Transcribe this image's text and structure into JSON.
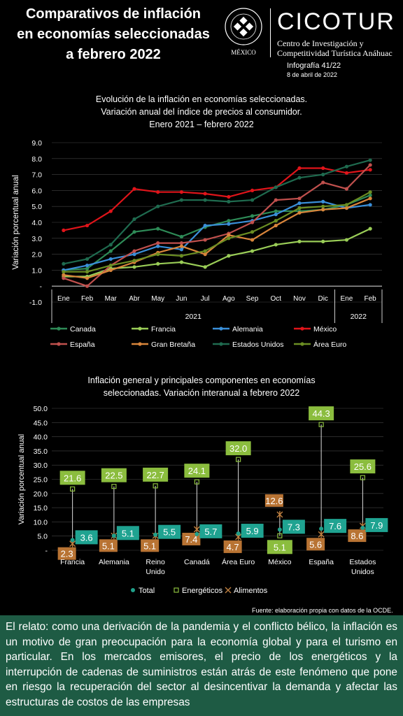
{
  "header": {
    "title_lines": [
      "Comparativos de inflación",
      "en economías seleccionadas",
      "a febrero 2022"
    ],
    "university_seal_text": "UNIVERSIDAD ANÁHUAC · VINCE IN BONO MALUM",
    "university_location": "MÉXICO",
    "brand": "CICOTUR",
    "tagline_lines": [
      "Centro de Investigación y",
      "Competitividad Turística Anáhuac"
    ],
    "infografia": "Infografía 41/22",
    "date": "8 de abril de 2022"
  },
  "chart_data": [
    {
      "type": "line",
      "title_lines": [
        "Evolución de la inflación en economías seleccionadas.",
        "Variación anual del índice de precios al consumidor.",
        "Enero 2021 – febrero 2022"
      ],
      "ylabel": "Variación porcentual anual",
      "ylim": [
        -1.0,
        9.0
      ],
      "y_ticks": [
        "9.0",
        "8.0",
        "7.0",
        "6.0",
        "5.0",
        "4.0",
        "3.0",
        "2.0",
        "1.0",
        "-",
        "-1.0"
      ],
      "categories": [
        "Ene",
        "Feb",
        "Mar",
        "Abr",
        "May",
        "Jun",
        "Jul",
        "Ago",
        "Sep",
        "Oct",
        "Nov",
        "Dic",
        "Ene",
        "Feb"
      ],
      "year_groups": [
        {
          "label": "2021",
          "start": 0,
          "end": 11
        },
        {
          "label": "2022",
          "start": 12,
          "end": 13
        }
      ],
      "legend_position": "bottom",
      "series": [
        {
          "name": "Canada",
          "color": "#2e8b57",
          "values": [
            1.0,
            1.1,
            2.2,
            3.4,
            3.6,
            3.1,
            3.7,
            4.1,
            4.4,
            4.7,
            4.7,
            4.8,
            5.1,
            5.7
          ]
        },
        {
          "name": "Francia",
          "color": "#9acd57",
          "values": [
            0.6,
            0.6,
            1.1,
            1.2,
            1.4,
            1.5,
            1.2,
            1.9,
            2.2,
            2.6,
            2.8,
            2.8,
            2.9,
            3.6
          ]
        },
        {
          "name": "Alemania",
          "color": "#3a8fd9",
          "values": [
            1.0,
            1.3,
            1.7,
            2.0,
            2.5,
            2.3,
            3.8,
            3.9,
            4.1,
            4.5,
            5.2,
            5.3,
            4.9,
            5.1
          ]
        },
        {
          "name": "México",
          "color": "#e0141a",
          "values": [
            3.5,
            3.8,
            4.7,
            6.1,
            5.9,
            5.9,
            5.8,
            5.6,
            6.0,
            6.2,
            7.4,
            7.4,
            7.1,
            7.3
          ]
        },
        {
          "name": "España",
          "color": "#c0504d",
          "values": [
            0.5,
            0.0,
            1.3,
            2.2,
            2.7,
            2.7,
            2.9,
            3.3,
            4.0,
            5.4,
            5.5,
            6.5,
            6.1,
            7.6
          ]
        },
        {
          "name": "Gran Bretaña",
          "color": "#d9853b",
          "values": [
            0.7,
            0.5,
            1.0,
            1.5,
            2.1,
            2.5,
            2.0,
            3.2,
            2.9,
            3.8,
            4.6,
            4.8,
            4.9,
            5.5
          ]
        },
        {
          "name": "Estados Unidos",
          "color": "#1f6b4f",
          "values": [
            1.4,
            1.7,
            2.6,
            4.2,
            5.0,
            5.4,
            5.4,
            5.3,
            5.4,
            6.2,
            6.8,
            7.0,
            7.5,
            7.9
          ]
        },
        {
          "name": "Área Euro",
          "color": "#6b8e23",
          "values": [
            0.9,
            0.9,
            1.3,
            1.6,
            2.0,
            1.9,
            2.2,
            3.0,
            3.4,
            4.1,
            4.9,
            5.0,
            5.1,
            5.9
          ]
        }
      ]
    },
    {
      "type": "scatter",
      "title_lines": [
        "Inflación general y principales componentes en economías",
        "seleccionadas. Variación interanual a febrero 2022"
      ],
      "ylabel": "Variación porcentual anual",
      "ylim": [
        0,
        50
      ],
      "y_ticks": [
        "50.0",
        "45.0",
        "40.0",
        "35.0",
        "30.0",
        "25.0",
        "20.0",
        "15.0",
        "10.0",
        "5.0",
        "-"
      ],
      "categories": [
        "Francia",
        "Alemania",
        "Reino Unido",
        "Canadá",
        "Área Euro",
        "México",
        "España",
        "Estados Unidos"
      ],
      "category_lines": [
        [
          "Francia"
        ],
        [
          "Alemania"
        ],
        [
          "Reino",
          "Unido"
        ],
        [
          "Canadá"
        ],
        [
          "Área Euro"
        ],
        [
          "México"
        ],
        [
          "España"
        ],
        [
          "Estados",
          "Unidos"
        ]
      ],
      "legend_position": "bottom",
      "series": [
        {
          "name": "Total",
          "color": "#20a08a",
          "values": [
            3.6,
            5.1,
            5.5,
            5.7,
            5.9,
            7.3,
            7.6,
            7.9
          ],
          "labels": [
            "3.6",
            "5.1",
            "5.5",
            "5.7",
            "5.9",
            "7.3",
            "7.6",
            "7.9"
          ]
        },
        {
          "name": "Energéticos",
          "color": "#8bbd3e",
          "values": [
            21.6,
            22.5,
            22.7,
            24.1,
            32.0,
            5.1,
            44.3,
            25.6
          ],
          "labels": [
            "21.6",
            "22.5",
            "22.7",
            "24.1",
            "32.0",
            "5.1",
            "44.3",
            "25.6"
          ]
        },
        {
          "name": "Alimentos",
          "color": "#c08040",
          "values": [
            2.3,
            5.1,
            5.1,
            7.4,
            4.7,
            12.6,
            5.6,
            8.6
          ],
          "labels": [
            "2.3",
            "5.1",
            "5.1",
            "7.4",
            "4.7",
            "12.6",
            "5.6",
            "8.6"
          ]
        }
      ]
    }
  ],
  "footer": {
    "source": "Fuente:  elaboración propia con datos de la OCDE.",
    "narrative": "El relato: como una derivación de la pandemia y el conflicto bélico, la inflación es un motivo de gran preocupación para la economía global y para el turismo en particular. En los mercados emisores, el precio de los energéticos y la interrupción de cadenas de suministros están atrás de este fenómeno que pone en riesgo la recuperación del sector al desincentivar la demanda y afectar las estructuras de costos de las empresas"
  }
}
